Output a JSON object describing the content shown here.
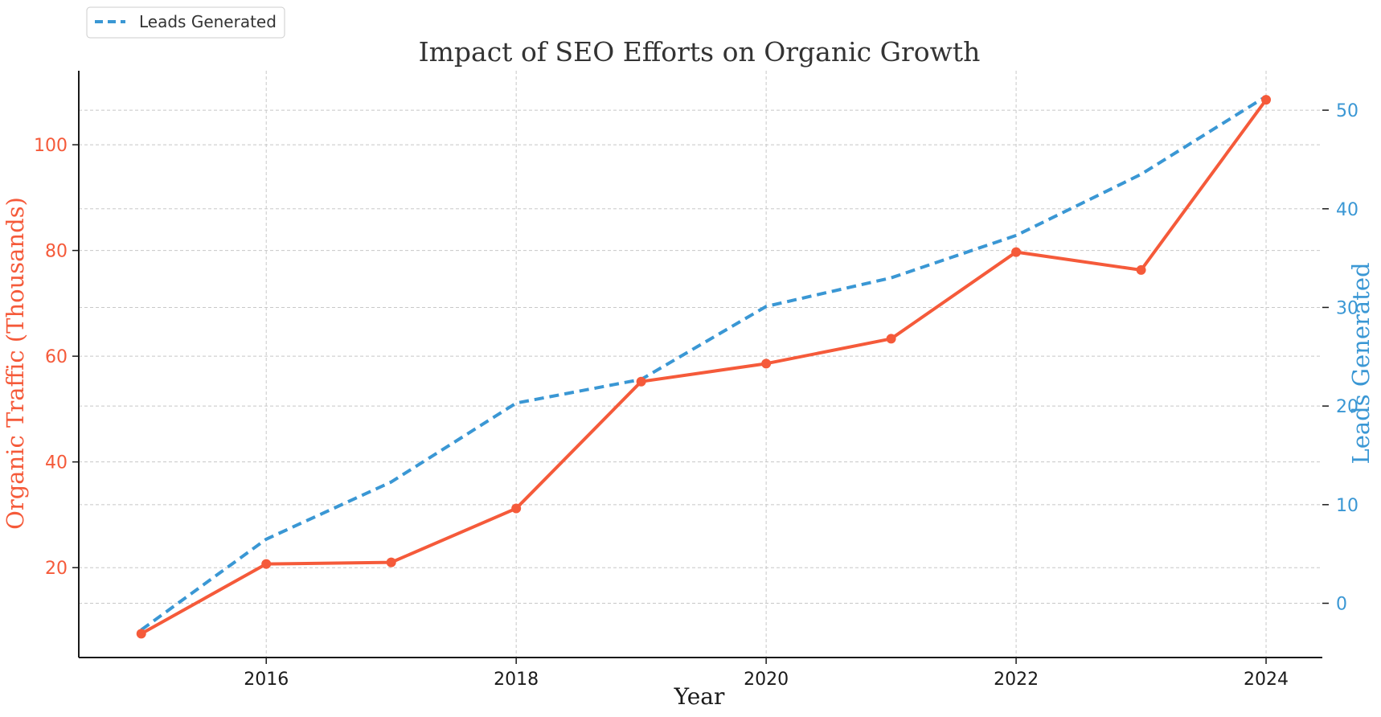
{
  "colors": {
    "traffic": "#f55a3a",
    "leads": "#3a97d4",
    "axis": "#1a1a1a",
    "grid": "#c8c8c8",
    "text": "#333333"
  },
  "chart_data": {
    "type": "line",
    "title": "Impact of SEO Efforts on Organic Growth",
    "xlabel": "Year",
    "ylabel_left": "Organic Traffic (Thousands)",
    "ylabel_right": "Leads Generated",
    "x": [
      2015,
      2016,
      2017,
      2018,
      2019,
      2020,
      2021,
      2022,
      2023,
      2024
    ],
    "xlim": [
      2014.5,
      2024.45
    ],
    "x_ticks": [
      2016,
      2018,
      2020,
      2022,
      2024
    ],
    "ylim_left": [
      3,
      114
    ],
    "y_ticks_left": [
      20,
      40,
      60,
      80,
      100
    ],
    "ylim_right": [
      -5.5,
      54
    ],
    "y_ticks_right": [
      0,
      10,
      20,
      30,
      40,
      50
    ],
    "grid": true,
    "legend": {
      "position": "top-left",
      "entries": [
        "Leads Generated"
      ]
    },
    "series": [
      {
        "name": "Organic Traffic (Thousands)",
        "axis": "left",
        "style": "solid-markers",
        "values": [
          7.5,
          20.7,
          21.0,
          31.2,
          55.2,
          58.6,
          63.3,
          79.7,
          76.3,
          108.5
        ]
      },
      {
        "name": "Leads Generated",
        "axis": "right",
        "style": "dashed",
        "values": [
          -2.7,
          6.5,
          12.3,
          20.3,
          22.7,
          30.1,
          33.0,
          37.3,
          43.5,
          51.4
        ]
      }
    ]
  }
}
